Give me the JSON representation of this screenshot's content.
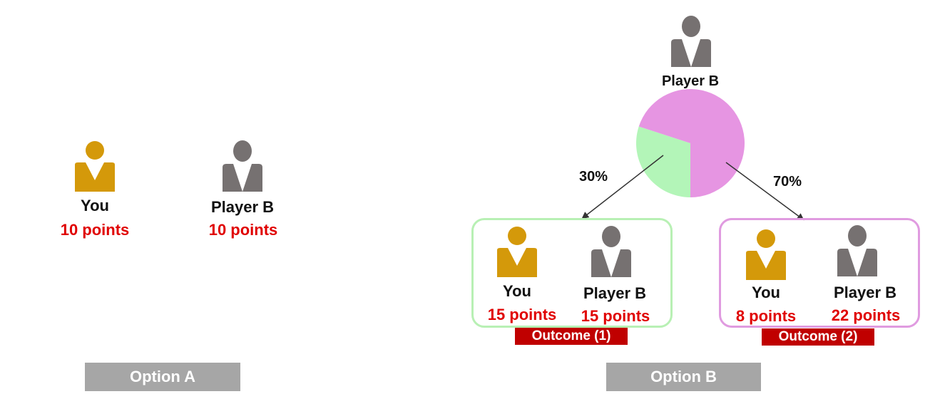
{
  "colors": {
    "you": "#d4990a",
    "player_b": "#767171",
    "points": "#e00000",
    "option_label_bg": "#a6a6a6",
    "outcome_label_bg": "#c00000",
    "green_slice": "#b3f5b8",
    "pink_slice": "#e695e2",
    "green_border": "#b8f0b4",
    "pink_border": "#e09be0"
  },
  "icons": {
    "you": "person-icon",
    "player_b": "person-icon"
  },
  "option_a": {
    "label": "Option A",
    "you": {
      "name": "You",
      "points": "10 points"
    },
    "player_b": {
      "name": "Player B",
      "points": "10 points"
    }
  },
  "option_b": {
    "label": "Option B",
    "chooser": {
      "name": "Player B"
    },
    "chance_pie": {
      "slices": [
        {
          "outcome": "Outcome (1)",
          "percent": 30
        },
        {
          "outcome": "Outcome (2)",
          "percent": 70
        }
      ]
    },
    "outcome_1": {
      "probability_label": "30%",
      "label": "Outcome (1)",
      "you": {
        "name": "You",
        "points": "15 points"
      },
      "player_b": {
        "name": "Player B",
        "points": "15 points"
      }
    },
    "outcome_2": {
      "probability_label": "70%",
      "label": "Outcome (2)",
      "you": {
        "name": "You",
        "points": "8 points"
      },
      "player_b": {
        "name": "Player B",
        "points": "22 points"
      }
    }
  }
}
